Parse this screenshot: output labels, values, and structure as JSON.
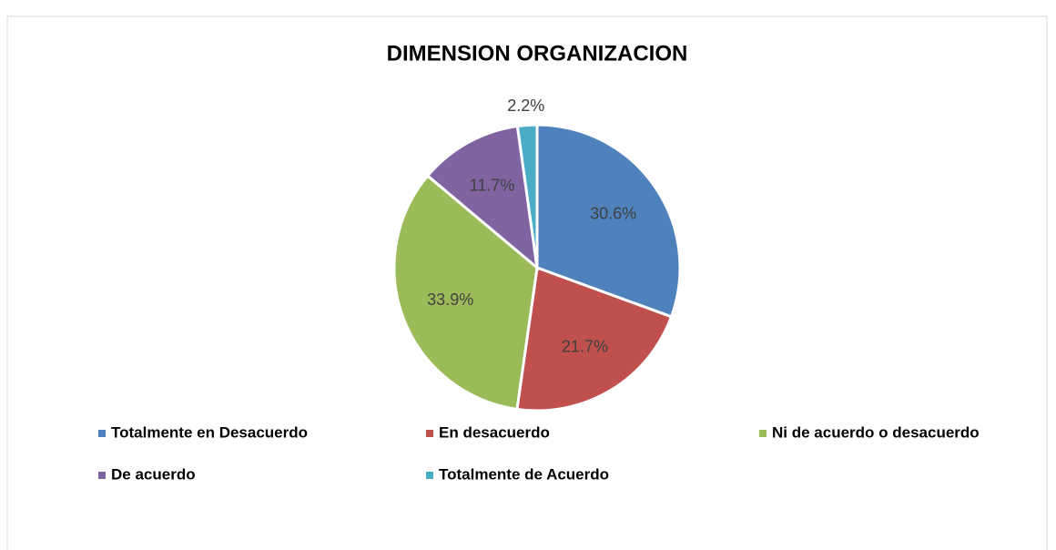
{
  "chart_data": {
    "type": "pie",
    "title": "DIMENSION ORGANIZACION",
    "categories": [
      "Totalmente en Desacuerdo",
      "En desacuerdo",
      "Ni de acuerdo o desacuerdo",
      "De acuerdo",
      "Totalmente de Acuerdo"
    ],
    "values": [
      30.6,
      21.7,
      33.9,
      11.7,
      2.2
    ],
    "value_labels": [
      "30.6%",
      "21.7%",
      "33.9%",
      "11.7%",
      "2.2%"
    ],
    "colors": [
      "#4f81bd",
      "#c0504d",
      "#9bbb59",
      "#8064a2",
      "#4bacc6"
    ],
    "legend": "bottom"
  }
}
